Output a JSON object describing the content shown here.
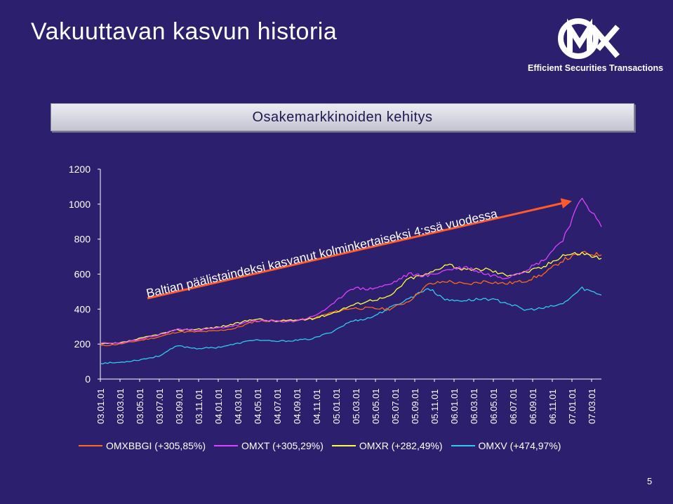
{
  "slide": {
    "title": "Vakuuttavan kasvun historia",
    "page_number": "5"
  },
  "logo": {
    "name": "OMX",
    "tagline": "Efficient Securities Transactions"
  },
  "colors": {
    "background": "#2b1f6e",
    "OMXBBGI": "#ff6a1a",
    "OMXT": "#e040ff",
    "OMXR": "#ffff40",
    "OMXV": "#33c8f0",
    "arrow": "#ff5a2a"
  },
  "chart_data": {
    "type": "line",
    "title": "Osakemarkkinoiden kehitys",
    "annotation": "Baltian päälistaindeksi kasvanut kolminkertaiseksi 4:ssä vuodessa",
    "ylim": [
      0,
      1200
    ],
    "yticks": [
      0,
      200,
      400,
      600,
      800,
      1000,
      1200
    ],
    "grid": false,
    "legend_position": "bottom",
    "x_tick_labels": [
      "03.01.01",
      "03.03.01",
      "03.05.01",
      "03.07.01",
      "03.09.01",
      "03.11.01",
      "04.01.01",
      "04.03.01",
      "04.05.01",
      "04.07.01",
      "04.09.01",
      "04.11.01",
      "05.01.01",
      "05.03.01",
      "05.05.01",
      "05.07.01",
      "05.09.01",
      "05.11.01",
      "06.01.01",
      "06.03.01",
      "06.05.01",
      "06.07.01",
      "06.09.01",
      "06.11.01",
      "07.01.01",
      "07.03.01"
    ],
    "x": [
      "03.01",
      "03.03",
      "03.05",
      "03.07",
      "03.09",
      "03.11",
      "04.01",
      "04.03",
      "04.05",
      "04.07",
      "04.09",
      "04.11",
      "05.01",
      "05.03",
      "05.05",
      "05.07",
      "05.09",
      "05.11",
      "06.01",
      "06.03",
      "06.05",
      "06.07",
      "06.09",
      "06.11",
      "07.01",
      "07.03",
      "07.04"
    ],
    "series": [
      {
        "name": "OMXBBGI (+305,85%)",
        "key": "OMXBBGI",
        "values": [
          190,
          200,
          220,
          240,
          270,
          270,
          275,
          290,
          330,
          335,
          335,
          345,
          380,
          405,
          405,
          400,
          445,
          540,
          560,
          540,
          560,
          545,
          560,
          600,
          680,
          720,
          710
        ]
      },
      {
        "name": "OMXT (+305,29%)",
        "key": "OMXT",
        "values": [
          205,
          205,
          225,
          250,
          285,
          280,
          290,
          305,
          335,
          330,
          330,
          355,
          420,
          520,
          515,
          540,
          600,
          590,
          625,
          640,
          600,
          580,
          620,
          680,
          800,
          1040,
          870
        ]
      },
      {
        "name": "OMXR (+282,49%)",
        "key": "OMXR",
        "values": [
          200,
          205,
          230,
          255,
          280,
          285,
          295,
          315,
          345,
          330,
          335,
          345,
          375,
          420,
          450,
          470,
          575,
          600,
          660,
          620,
          630,
          595,
          610,
          640,
          710,
          720,
          690
        ]
      },
      {
        "name": "OMXV (+474,97%)",
        "key": "OMXV",
        "values": [
          90,
          95,
          110,
          130,
          190,
          175,
          180,
          200,
          225,
          215,
          220,
          230,
          270,
          330,
          350,
          405,
          460,
          520,
          450,
          450,
          460,
          440,
          395,
          405,
          430,
          520,
          480
        ]
      }
    ]
  }
}
